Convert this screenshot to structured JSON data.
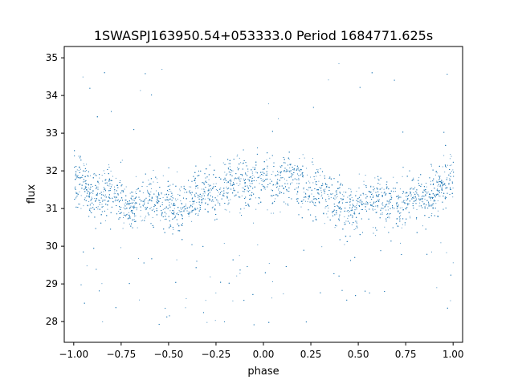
{
  "chart_data": {
    "type": "scatter",
    "title": "1SWASPJ163950.54+053333.0 Period 1684771.625s",
    "xlabel": "phase",
    "ylabel": "flux",
    "xlim": [
      -1.05,
      1.05
    ],
    "ylim": [
      27.45,
      35.3
    ],
    "xticks": [
      -1.0,
      -0.75,
      -0.5,
      -0.25,
      0.0,
      0.25,
      0.5,
      0.75,
      1.0
    ],
    "xtick_labels": [
      "−1.00",
      "−0.75",
      "−0.50",
      "−0.25",
      "0.00",
      "0.25",
      "0.50",
      "0.75",
      "1.00"
    ],
    "yticks": [
      28,
      29,
      30,
      31,
      32,
      33,
      34,
      35
    ],
    "ytick_labels": [
      "28",
      "29",
      "30",
      "31",
      "32",
      "33",
      "34",
      "35"
    ],
    "grid": false,
    "legend": "none",
    "marker_color": "#1f77b4",
    "series": [
      {
        "points_description": "phase-folded light curve, dense cloud of points, mirrored about phase 0",
        "x_range": [
          -1.0,
          1.0
        ],
        "band_center": [
          [
            -1.0,
            31.9
          ],
          [
            -0.95,
            31.7
          ],
          [
            -0.9,
            31.4
          ],
          [
            -0.85,
            31.3
          ],
          [
            -0.8,
            31.5
          ],
          [
            -0.75,
            31.2
          ],
          [
            -0.7,
            31.0
          ],
          [
            -0.65,
            31.2
          ],
          [
            -0.6,
            31.3
          ],
          [
            -0.55,
            31.2
          ],
          [
            -0.5,
            31.1
          ],
          [
            -0.45,
            31.0
          ],
          [
            -0.4,
            31.2
          ],
          [
            -0.35,
            31.3
          ],
          [
            -0.3,
            31.5
          ],
          [
            -0.25,
            31.4
          ],
          [
            -0.2,
            31.6
          ],
          [
            -0.15,
            31.8
          ],
          [
            -0.1,
            31.7
          ],
          [
            -0.05,
            31.6
          ],
          [
            0.0,
            31.9
          ]
        ],
        "band_spread": 0.45,
        "outlier_low": 27.9,
        "outlier_high": 34.9
      }
    ]
  }
}
